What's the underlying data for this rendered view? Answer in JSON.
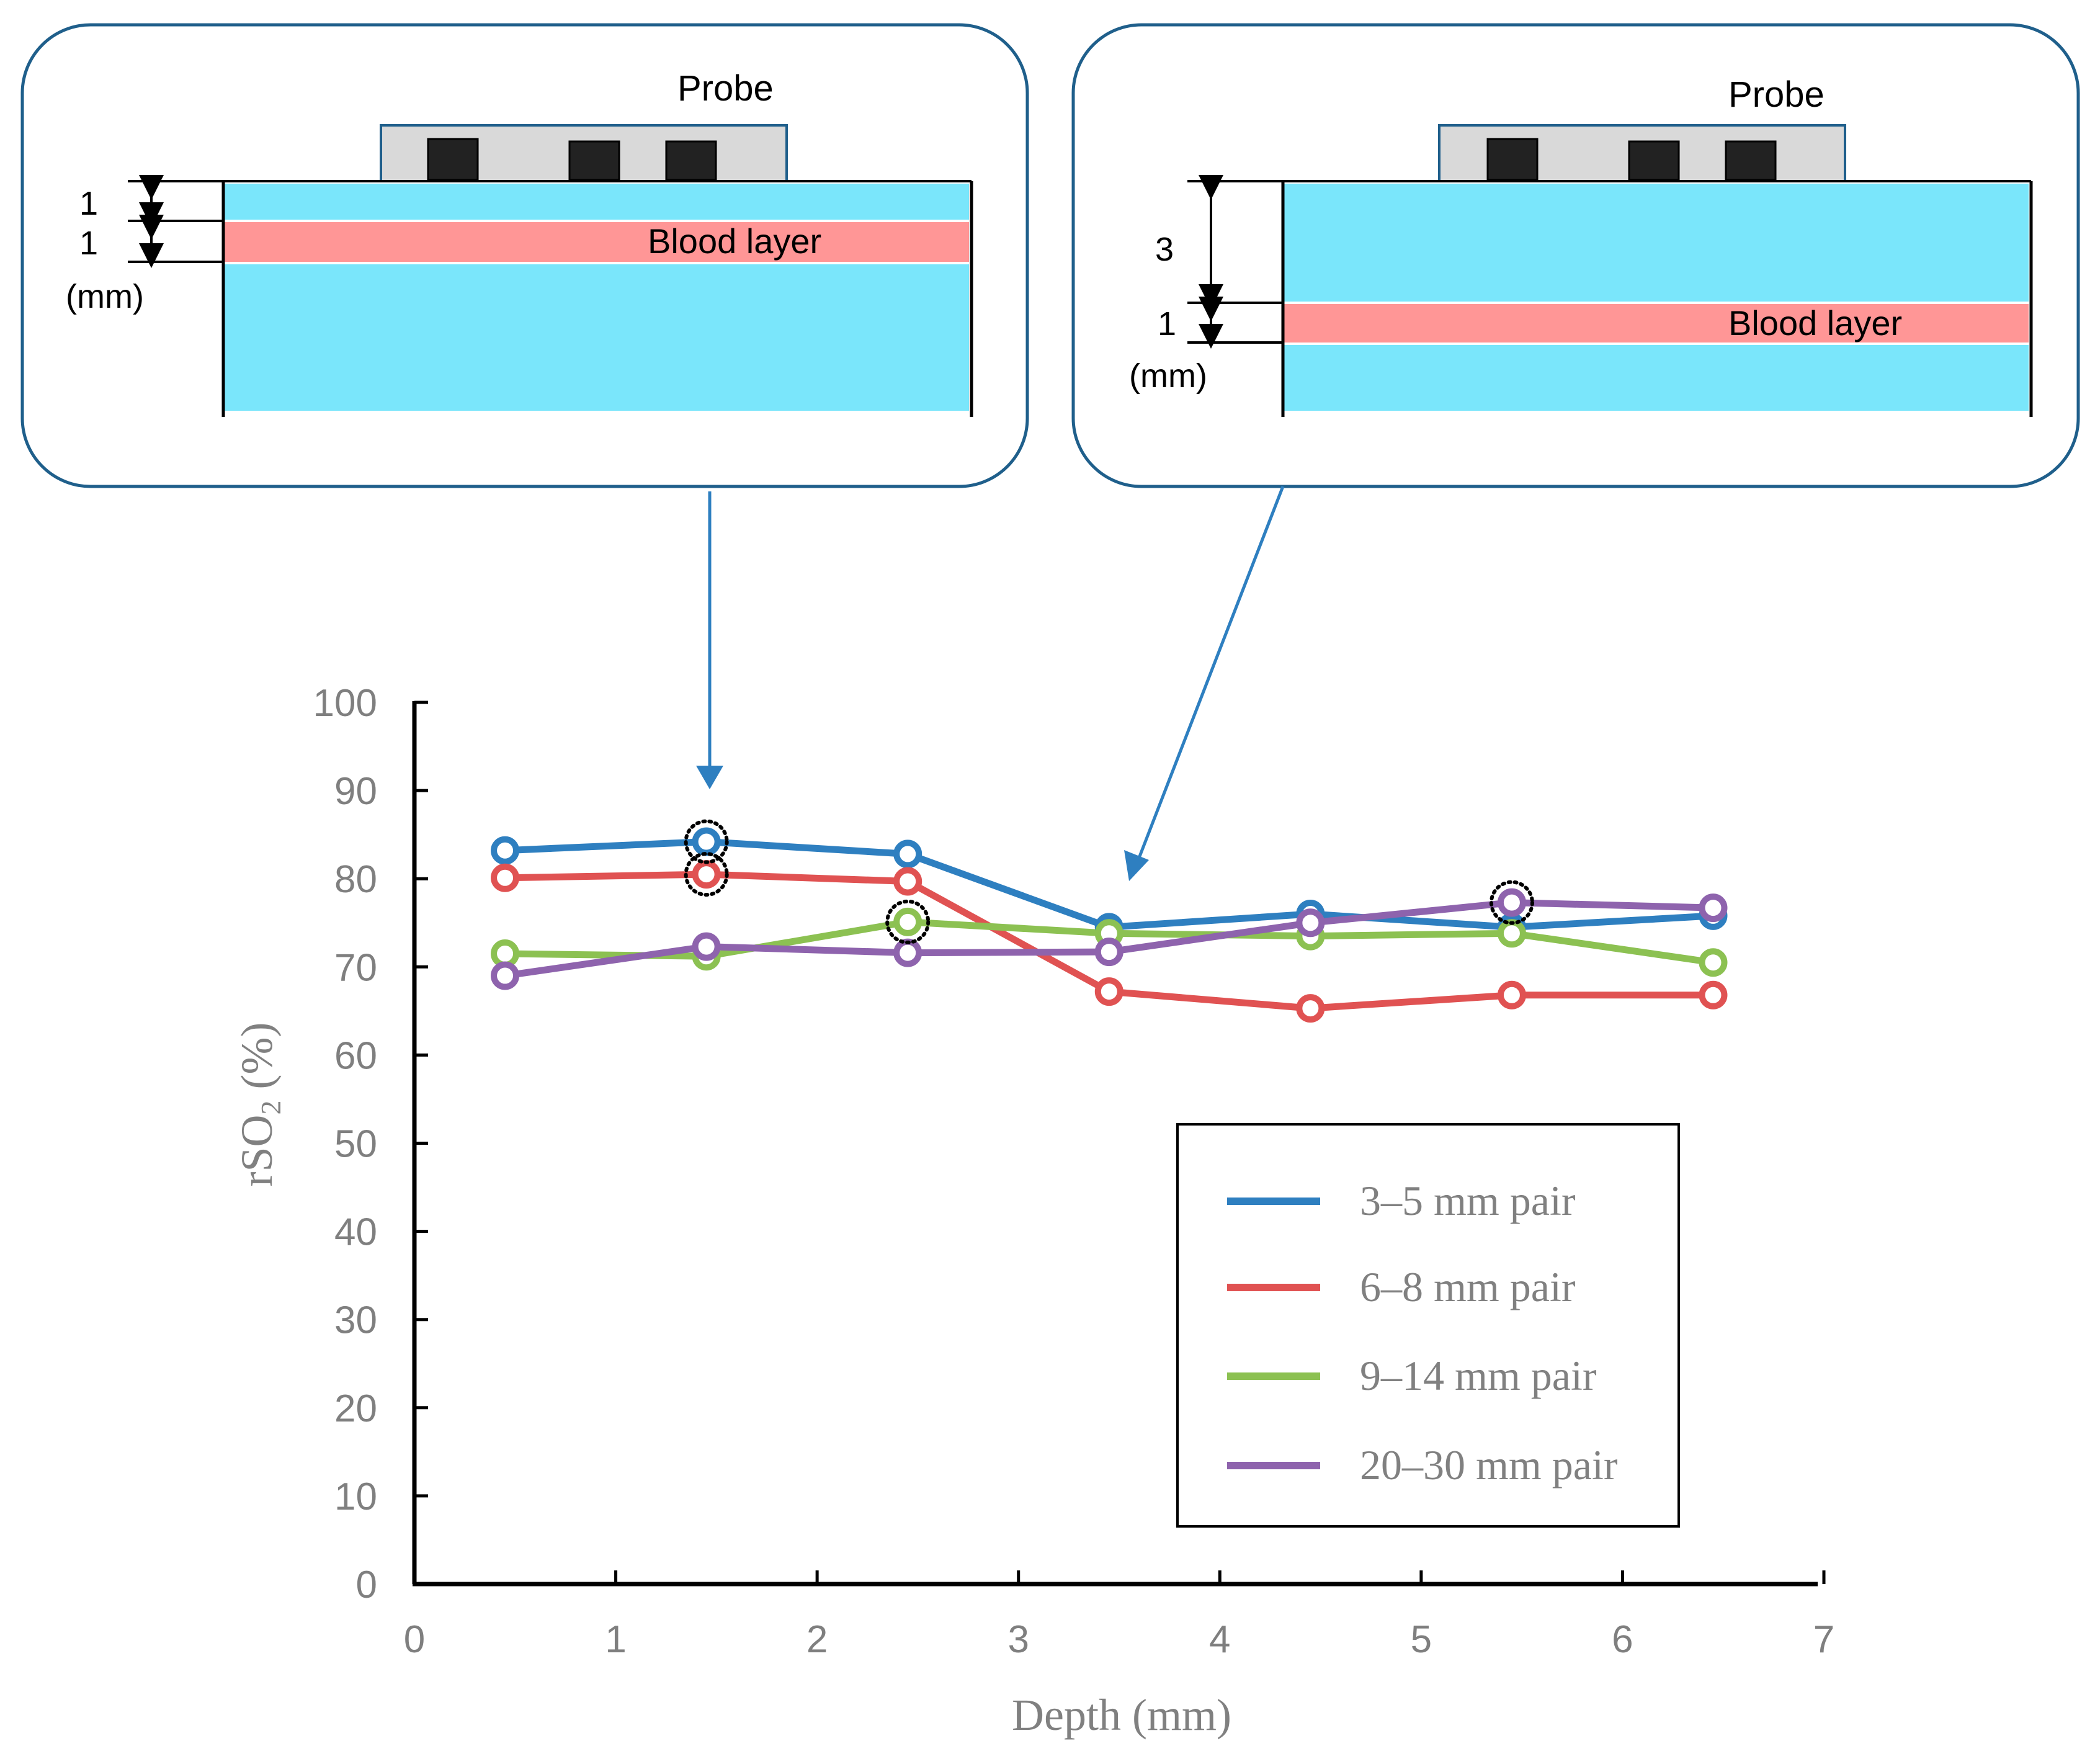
{
  "panels": [
    {
      "probe_label": "Probe",
      "blood_label": "Blood layer",
      "dim_top": "1",
      "dim_blood": "1",
      "unit": "(mm)"
    },
    {
      "probe_label": "Probe",
      "blood_label": "Blood layer",
      "dim_top": "3",
      "dim_blood": "1",
      "unit": "(mm)"
    }
  ],
  "colors": {
    "panel_border": "#1f5f8b",
    "probe_fill": "#d9d9d9",
    "probe_border": "#1f5f8b",
    "tissue": "#7ae6fb",
    "blood": "#ff9696",
    "arrow": "#2e7fc0"
  },
  "chart_data": {
    "type": "line",
    "xlabel": "Depth (mm)",
    "ylabel_main": "rSO",
    "ylabel_sub": "2",
    "ylabel_suffix": " (%)",
    "xlim": [
      0,
      7
    ],
    "ylim": [
      0,
      100
    ],
    "xticks": [
      0,
      1,
      2,
      3,
      4,
      5,
      6,
      7
    ],
    "yticks": [
      0,
      10,
      20,
      30,
      40,
      50,
      60,
      70,
      80,
      90,
      100
    ],
    "x": [
      0.45,
      1.45,
      2.45,
      3.45,
      4.45,
      5.45,
      6.45
    ],
    "series": [
      {
        "name": "3–5 mm pair",
        "color": "#2e7fc0",
        "values": [
          83.2,
          84.2,
          82.8,
          74.5,
          76.0,
          74.5,
          75.8
        ]
      },
      {
        "name": "6–8 mm pair",
        "color": "#e05252",
        "values": [
          80.1,
          80.5,
          79.7,
          67.2,
          65.3,
          66.8,
          66.8
        ]
      },
      {
        "name": "9–14 mm pair",
        "color": "#8cc152",
        "values": [
          71.5,
          71.2,
          75.1,
          73.8,
          73.5,
          73.8,
          70.5
        ]
      },
      {
        "name": "20–30 mm pair",
        "color": "#8e63ad",
        "values": [
          69.0,
          72.3,
          71.6,
          71.7,
          75.0,
          77.3,
          76.7
        ]
      }
    ],
    "highlighted_points": [
      {
        "x": 1.45,
        "y": 84.2
      },
      {
        "x": 1.45,
        "y": 80.5
      },
      {
        "x": 2.45,
        "y": 75.1
      },
      {
        "x": 5.45,
        "y": 77.3
      }
    ],
    "legend_position": "bottom-right"
  }
}
